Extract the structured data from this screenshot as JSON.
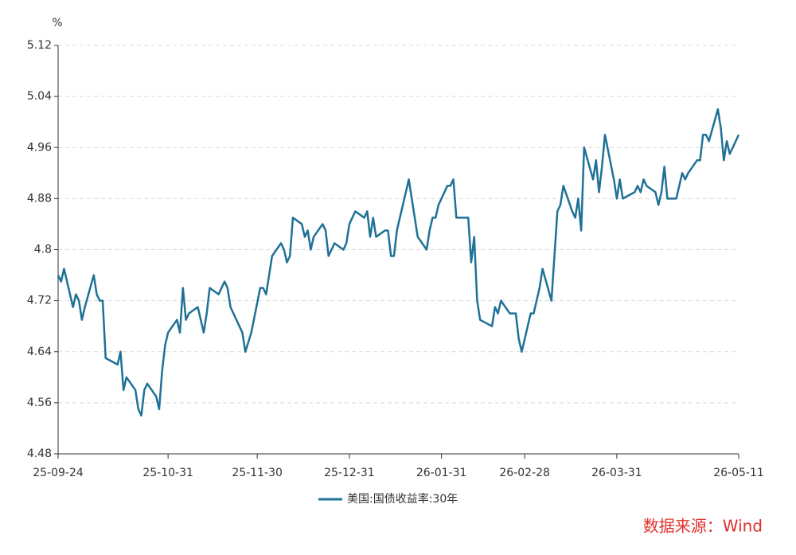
{
  "chart_data": {
    "type": "line",
    "y_unit": "%",
    "source": "数据来源：Wind",
    "x": [
      "25-09-24",
      "25-09-25",
      "25-09-26",
      "25-09-29",
      "25-09-30",
      "25-10-01",
      "25-10-02",
      "25-10-03",
      "25-10-06",
      "25-10-07",
      "25-10-08",
      "25-10-09",
      "25-10-10",
      "25-10-14",
      "25-10-15",
      "25-10-16",
      "25-10-17",
      "25-10-20",
      "25-10-21",
      "25-10-22",
      "25-10-23",
      "25-10-24",
      "25-10-27",
      "25-10-28",
      "25-10-29",
      "25-10-30",
      "25-10-31",
      "25-11-03",
      "25-11-04",
      "25-11-05",
      "25-11-06",
      "25-11-07",
      "25-11-10",
      "25-11-12",
      "25-11-13",
      "25-11-14",
      "25-11-17",
      "25-11-19",
      "25-11-20",
      "25-11-21",
      "25-11-24",
      "25-11-25",
      "25-11-26",
      "25-11-28",
      "25-12-01",
      "25-12-02",
      "25-12-03",
      "25-12-05",
      "25-12-08",
      "25-12-09",
      "25-12-10",
      "25-12-11",
      "25-12-12",
      "25-12-15",
      "25-12-16",
      "25-12-17",
      "25-12-18",
      "25-12-19",
      "25-12-22",
      "25-12-23",
      "25-12-24",
      "25-12-26",
      "25-12-29",
      "25-12-30",
      "25-12-31",
      "26-01-02",
      "26-01-05",
      "26-01-06",
      "26-01-07",
      "26-01-08",
      "26-01-09",
      "26-01-12",
      "26-01-13",
      "26-01-14",
      "26-01-15",
      "26-01-16",
      "26-01-20",
      "26-01-21",
      "26-01-22",
      "26-01-23",
      "26-01-26",
      "26-01-27",
      "26-01-28",
      "26-01-29",
      "26-01-30",
      "26-02-02",
      "26-02-03",
      "26-02-04",
      "26-02-05",
      "26-02-06",
      "26-02-09",
      "26-02-10",
      "26-02-11",
      "26-02-12",
      "26-02-13",
      "26-02-17",
      "26-02-18",
      "26-02-19",
      "26-02-20",
      "26-02-23",
      "26-02-24",
      "26-02-25",
      "26-02-26",
      "26-02-27",
      "26-03-02",
      "26-03-03",
      "26-03-04",
      "26-03-05",
      "26-03-06",
      "26-03-09",
      "26-03-10",
      "26-03-11",
      "26-03-12",
      "26-03-13",
      "26-03-16",
      "26-03-17",
      "26-03-18",
      "26-03-19",
      "26-03-20",
      "26-03-23",
      "26-03-24",
      "26-03-25",
      "26-03-26",
      "26-03-27",
      "26-03-30",
      "26-03-31",
      "26-04-01",
      "26-04-02",
      "26-04-06",
      "26-04-07",
      "26-04-08",
      "26-04-09",
      "26-04-10",
      "26-04-13",
      "26-04-14",
      "26-04-15",
      "26-04-16",
      "26-04-17",
      "26-04-20",
      "26-04-21",
      "26-04-22",
      "26-04-23",
      "26-04-24",
      "26-04-27",
      "26-04-28",
      "26-04-29",
      "26-04-30",
      "26-05-01",
      "26-05-04",
      "26-05-05",
      "26-05-06",
      "26-05-07",
      "26-05-08",
      "26-05-11"
    ],
    "series": [
      {
        "name": "美国:国债收益率:30年",
        "color": "#1f7196",
        "values": [
          4.76,
          4.75,
          4.77,
          4.71,
          4.73,
          4.72,
          4.69,
          4.71,
          4.76,
          4.73,
          4.72,
          4.72,
          4.63,
          4.62,
          4.64,
          4.58,
          4.6,
          4.58,
          4.55,
          4.54,
          4.58,
          4.59,
          4.57,
          4.55,
          4.61,
          4.65,
          4.67,
          4.69,
          4.67,
          4.74,
          4.69,
          4.7,
          4.71,
          4.67,
          4.7,
          4.74,
          4.73,
          4.75,
          4.74,
          4.71,
          4.68,
          4.67,
          4.64,
          4.67,
          4.74,
          4.74,
          4.73,
          4.79,
          4.81,
          4.8,
          4.78,
          4.79,
          4.85,
          4.84,
          4.82,
          4.83,
          4.8,
          4.82,
          4.84,
          4.83,
          4.79,
          4.81,
          4.8,
          4.81,
          4.84,
          4.86,
          4.85,
          4.86,
          4.82,
          4.85,
          4.82,
          4.83,
          4.83,
          4.79,
          4.79,
          4.83,
          4.91,
          4.88,
          4.85,
          4.82,
          4.8,
          4.83,
          4.85,
          4.85,
          4.87,
          4.9,
          4.9,
          4.91,
          4.85,
          4.85,
          4.85,
          4.78,
          4.82,
          4.72,
          4.69,
          4.68,
          4.71,
          4.7,
          4.72,
          4.7,
          4.7,
          4.7,
          4.66,
          4.64,
          4.7,
          4.7,
          4.72,
          4.74,
          4.77,
          4.72,
          4.79,
          4.86,
          4.87,
          4.9,
          4.86,
          4.85,
          4.88,
          4.83,
          4.96,
          4.91,
          4.94,
          4.89,
          4.93,
          4.98,
          4.91,
          4.88,
          4.91,
          4.88,
          4.89,
          4.9,
          4.89,
          4.91,
          4.9,
          4.89,
          4.87,
          4.89,
          4.93,
          4.88,
          4.88,
          4.9,
          4.92,
          4.91,
          4.92,
          4.94,
          4.94,
          4.98,
          4.98,
          4.97,
          5.02,
          4.99,
          4.94,
          4.97,
          4.95,
          4.98
        ]
      }
    ],
    "xlim": [
      "25-09-24",
      "26-05-11"
    ],
    "xticks": [
      "25-09-24",
      "25-10-31",
      "25-11-30",
      "25-12-31",
      "26-01-31",
      "26-02-28",
      "26-03-31",
      "26-05-11"
    ],
    "ylim": [
      4.48,
      5.12
    ],
    "yticks": [
      4.48,
      4.56,
      4.64,
      4.72,
      4.8,
      4.88,
      4.96,
      5.04,
      5.12
    ],
    "grid": true
  }
}
